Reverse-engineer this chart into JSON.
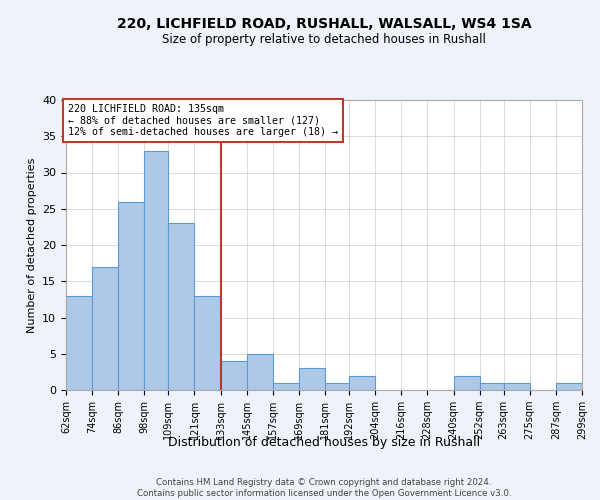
{
  "title": "220, LICHFIELD ROAD, RUSHALL, WALSALL, WS4 1SA",
  "subtitle": "Size of property relative to detached houses in Rushall",
  "xlabel": "Distribution of detached houses by size in Rushall",
  "ylabel": "Number of detached properties",
  "bins": [
    62,
    74,
    86,
    98,
    109,
    121,
    133,
    145,
    157,
    169,
    181,
    192,
    204,
    216,
    228,
    240,
    252,
    263,
    275,
    287,
    299
  ],
  "bin_labels": [
    "62sqm",
    "74sqm",
    "86sqm",
    "98sqm",
    "109sqm",
    "121sqm",
    "133sqm",
    "145sqm",
    "157sqm",
    "169sqm",
    "181sqm",
    "192sqm",
    "204sqm",
    "216sqm",
    "228sqm",
    "240sqm",
    "252sqm",
    "263sqm",
    "275sqm",
    "287sqm",
    "299sqm"
  ],
  "counts": [
    13,
    17,
    26,
    33,
    23,
    13,
    4,
    5,
    1,
    3,
    1,
    2,
    0,
    0,
    0,
    2,
    1,
    1,
    0,
    1
  ],
  "bar_color": "#aec9e8",
  "bar_edge_color": "#5b9bd5",
  "vline_x": 133,
  "vline_color": "#c0392b",
  "annotation_title": "220 LICHFIELD ROAD: 135sqm",
  "annotation_line1": "← 88% of detached houses are smaller (127)",
  "annotation_line2": "12% of semi-detached houses are larger (18) →",
  "annotation_box_color": "#c0392b",
  "ylim": [
    0,
    40
  ],
  "yticks": [
    0,
    5,
    10,
    15,
    20,
    25,
    30,
    35,
    40
  ],
  "footer1": "Contains HM Land Registry data © Crown copyright and database right 2024.",
  "footer2": "Contains public sector information licensed under the Open Government Licence v3.0.",
  "bg_color": "#eef2f9",
  "plot_bg_color": "#ffffff"
}
